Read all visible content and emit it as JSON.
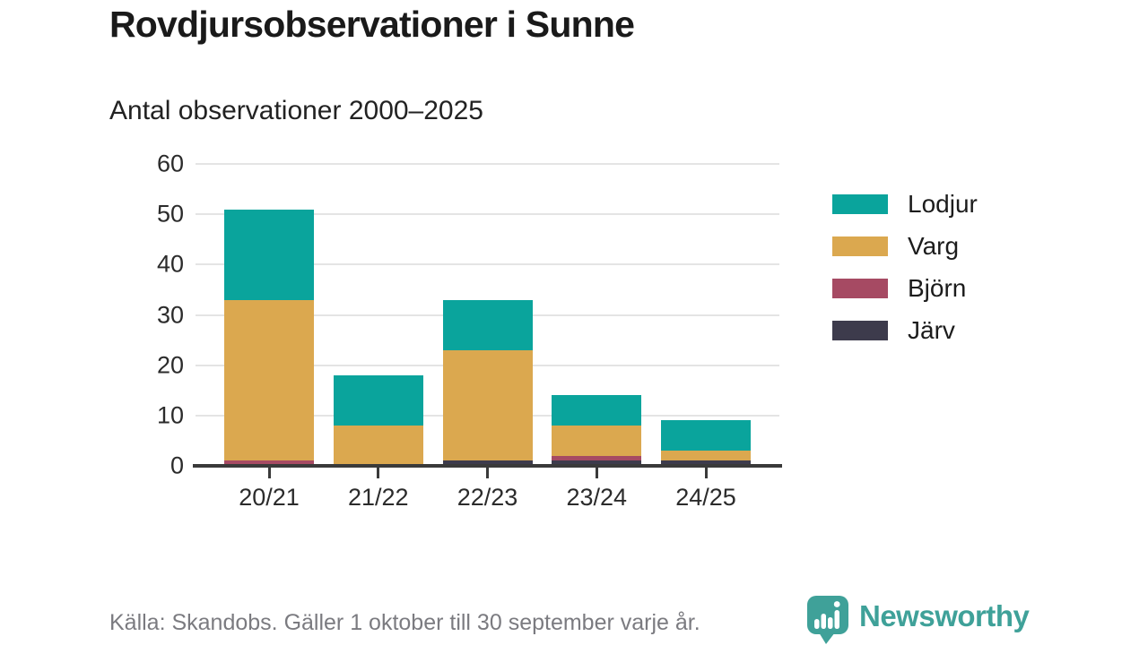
{
  "page": {
    "title": "Rovdjursobservationer i Sunne",
    "subtitle": "Antal observationer 2000–2025",
    "footer_source": "Källa: Skandobs. Gäller 1 oktober till 30 september varje år.",
    "brand_name": "Newsworthy"
  },
  "colors": {
    "lodjur_teal": "#0aa49c",
    "varg_gold": "#dba84f",
    "bjorn_maroon": "#a64a63",
    "jarv_dark": "#3d3b4c",
    "gridline": "#e4e4e4",
    "axis": "#3a3a3a",
    "title_text": "#1a1a1a",
    "footer_text": "#7b7b80",
    "brand_teal": "#3fa199"
  },
  "chart_data": {
    "type": "bar",
    "stacked": true,
    "title": "Rovdjursobservationer i Sunne",
    "subtitle": "Antal observationer 2000–2025",
    "categories": [
      "20/21",
      "21/22",
      "22/23",
      "23/24",
      "24/25"
    ],
    "series": [
      {
        "name": "Lodjur",
        "color": "#0aa49c",
        "values": [
          18,
          10,
          10,
          6,
          6
        ]
      },
      {
        "name": "Varg",
        "color": "#dba84f",
        "values": [
          32,
          8,
          22,
          6,
          2
        ]
      },
      {
        "name": "Björn",
        "color": "#a64a63",
        "values": [
          1,
          0,
          0,
          1,
          0
        ]
      },
      {
        "name": "Järv",
        "color": "#3d3b4c",
        "values": [
          0,
          0,
          1,
          1,
          1
        ]
      }
    ],
    "stack_order_bottom_to_top": [
      "Järv",
      "Björn",
      "Varg",
      "Lodjur"
    ],
    "totals": [
      51,
      18,
      33,
      14,
      9
    ],
    "ylim": [
      0,
      60
    ],
    "yticks": [
      0,
      10,
      20,
      30,
      40,
      50,
      60
    ],
    "xlabel": "",
    "ylabel": "",
    "grid": "horizontal",
    "legend_position": "right",
    "source_note": "Källa: Skandobs. Gäller 1 oktober till 30 september varje år."
  },
  "legend_items": [
    "Lodjur",
    "Varg",
    "Björn",
    "Järv"
  ]
}
